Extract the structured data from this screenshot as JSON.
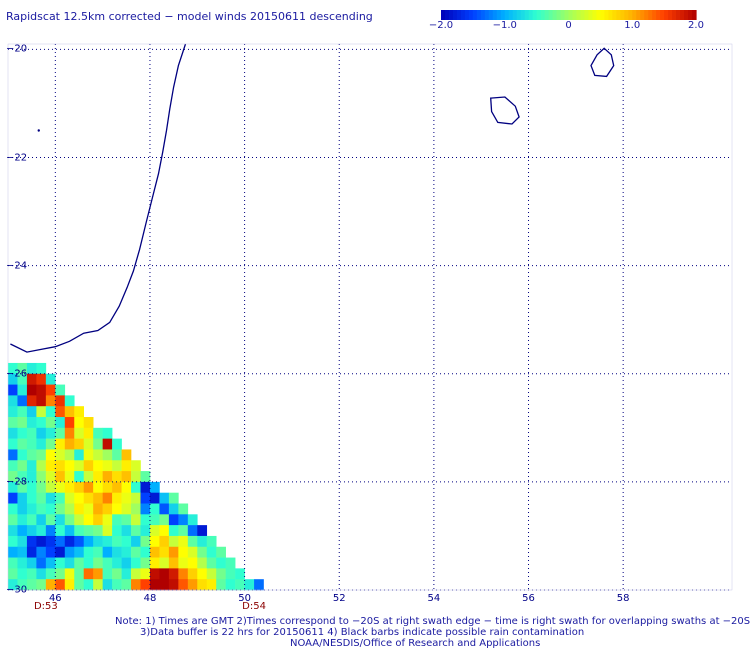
{
  "title": "Rapidscat 12.5km corrected − model winds 20150611 descending",
  "colorbar": {
    "tick_labels": [
      "−2.0",
      "−1.0",
      "0",
      "1.0",
      "2.0"
    ],
    "tick_values": [
      -2.0,
      -1.0,
      0,
      1.0,
      2.0
    ],
    "range": [
      -2.0,
      2.0
    ],
    "colors": [
      "#0000b8",
      "#0040ff",
      "#00b0ff",
      "#30ffd0",
      "#a0ff60",
      "#ffff00",
      "#ffb000",
      "#ff4000",
      "#b00000"
    ]
  },
  "map": {
    "lat_labels": [
      "−20",
      "−22",
      "−24",
      "−26",
      "−28",
      "−30"
    ],
    "lat_values": [
      -20,
      -22,
      -24,
      -26,
      -28,
      -30
    ],
    "lon_labels": [
      "46",
      "48",
      "50",
      "52",
      "54",
      "56",
      "58"
    ],
    "lon_values": [
      46,
      48,
      50,
      52,
      54,
      56,
      58
    ],
    "lon_range": [
      45.0,
      60.3
    ],
    "lat_range": [
      -30.0,
      -19.9
    ],
    "grid": "dotted",
    "coast_color": "#000080",
    "border_color": "#000080"
  },
  "time_labels": [
    "D:53",
    "D:54"
  ],
  "time_label_lons": [
    45.8,
    50.2
  ],
  "notes": {
    "line1": "Note: 1) Times are GMT 2)Times correspond to −20S at right swath edge − time is right swath for overlapping swaths at −20S",
    "line2": "3)Data buffer is 22 hrs for 20150611 4) Black barbs indicate possible rain contamination",
    "line3": "NOAA/NESDIS/Office of Research and Applications"
  },
  "chart_data": {
    "type": "heatmap",
    "title": "Rapidscat 12.5km corrected − model winds 20150611 descending",
    "value_range": [
      -2.0,
      2.0
    ],
    "cell_size_deg": 0.2,
    "rows": [
      {
        "lat": -25.9,
        "lon_start": 45.1,
        "values": [
          -0.5,
          -0.3,
          -0.6,
          -0.5
        ]
      },
      {
        "lat": -26.1,
        "lon_start": 45.1,
        "values": [
          -0.8,
          -0.4,
          1.8,
          1.6,
          -0.6
        ]
      },
      {
        "lat": -26.3,
        "lon_start": 45.1,
        "values": [
          -1.5,
          -0.6,
          2.0,
          1.9,
          1.5,
          -0.4
        ]
      },
      {
        "lat": -26.5,
        "lon_start": 45.1,
        "values": [
          -0.7,
          -1.3,
          1.7,
          1.9,
          1.2,
          1.6,
          -0.5
        ]
      },
      {
        "lat": -26.7,
        "lon_start": 45.1,
        "values": [
          -0.6,
          -0.4,
          -0.8,
          0.2,
          -0.5,
          1.4,
          0.9,
          0.6
        ]
      },
      {
        "lat": -26.9,
        "lon_start": 45.1,
        "values": [
          -0.3,
          -0.2,
          -0.6,
          -0.5,
          -0.2,
          -0.6,
          1.5,
          0.5,
          0.7
        ]
      },
      {
        "lat": -27.1,
        "lon_start": 45.1,
        "values": [
          -0.7,
          -0.5,
          -0.4,
          -0.8,
          -0.6,
          -0.3,
          1.2,
          0.3,
          0.6,
          -0.4,
          -0.5
        ]
      },
      {
        "lat": -27.3,
        "lon_start": 45.1,
        "values": [
          -0.5,
          -0.3,
          -0.4,
          -0.6,
          -0.2,
          0.6,
          1.0,
          0.8,
          0.3,
          -0.2,
          1.9,
          -0.5
        ]
      },
      {
        "lat": -27.5,
        "lon_start": 45.1,
        "values": [
          -1.3,
          -0.5,
          -0.3,
          -0.2,
          0.5,
          0.3,
          0.1,
          -0.6,
          0.4,
          0.2,
          0.0,
          -0.3,
          0.9
        ]
      },
      {
        "lat": -27.7,
        "lon_start": 45.1,
        "values": [
          -0.4,
          -0.2,
          -0.6,
          0.1,
          0.6,
          0.7,
          0.5,
          0.3,
          0.8,
          0.5,
          0.4,
          0.2,
          0.6,
          0.3
        ]
      },
      {
        "lat": -27.9,
        "lon_start": 45.1,
        "values": [
          -0.2,
          -0.4,
          -0.6,
          -0.1,
          0.3,
          0.9,
          0.4,
          -0.5,
          0.2,
          0.6,
          1.0,
          0.7,
          0.9,
          0.2,
          -0.3
        ]
      },
      {
        "lat": -28.1,
        "lon_start": 45.1,
        "values": [
          -0.6,
          -0.3,
          -0.5,
          -0.2,
          0.2,
          0.4,
          0.6,
          0.8,
          1.1,
          0.5,
          0.7,
          0.9,
          0.5,
          -0.5,
          -1.8,
          -1.0
        ]
      },
      {
        "lat": -28.3,
        "lon_start": 45.1,
        "values": [
          -1.5,
          -0.8,
          -0.5,
          -0.3,
          -0.7,
          -0.4,
          0.3,
          0.5,
          0.7,
          0.9,
          1.2,
          0.6,
          0.4,
          0.2,
          -1.5,
          -1.8,
          -0.9,
          -0.3
        ]
      },
      {
        "lat": -28.5,
        "lon_start": 45.1,
        "values": [
          -0.5,
          -0.8,
          -0.6,
          -0.4,
          -0.5,
          -0.2,
          0.1,
          0.6,
          0.4,
          1.0,
          0.8,
          0.5,
          0.3,
          0.0,
          -1.2,
          -0.5,
          -1.4,
          -0.8,
          -0.3
        ]
      },
      {
        "lat": -28.7,
        "lon_start": 45.1,
        "values": [
          -0.3,
          -0.6,
          -0.4,
          -0.8,
          -0.3,
          -0.7,
          -0.2,
          0.2,
          0.5,
          0.8,
          0.4,
          -0.4,
          -0.3,
          0.2,
          -0.5,
          -0.4,
          -0.2,
          -1.5,
          -1.2,
          -0.6
        ]
      },
      {
        "lat": -28.9,
        "lon_start": 45.1,
        "values": [
          -0.7,
          -1.0,
          -0.8,
          -0.6,
          -1.2,
          -0.5,
          -0.9,
          -0.4,
          -0.3,
          -0.2,
          0.3,
          -0.5,
          -0.7,
          -0.3,
          -0.6,
          0.3,
          0.5,
          -0.5,
          -0.3,
          -1.3,
          -1.8
        ]
      },
      {
        "lat": -29.1,
        "lon_start": 45.1,
        "values": [
          -0.5,
          -0.7,
          -1.6,
          -1.8,
          -1.6,
          -1.3,
          -1.7,
          -1.4,
          -1.0,
          -0.7,
          -0.6,
          -0.4,
          -0.5,
          -0.8,
          -0.2,
          0.5,
          0.8,
          0.2,
          0.4,
          -0.3,
          -0.6,
          -0.4
        ]
      },
      {
        "lat": -29.3,
        "lon_start": 45.1,
        "values": [
          -1.0,
          -0.9,
          -1.7,
          -1.2,
          -1.5,
          -1.8,
          -1.1,
          -0.9,
          -0.5,
          -0.4,
          -1.0,
          -0.7,
          -0.6,
          -0.3,
          -0.5,
          0.9,
          0.7,
          1.1,
          0.5,
          0.3,
          -0.2,
          -0.5,
          -0.3
        ]
      },
      {
        "lat": -29.5,
        "lon_start": 45.1,
        "values": [
          -0.4,
          -0.6,
          -0.8,
          -1.3,
          -0.9,
          -0.5,
          -0.7,
          -0.3,
          -0.5,
          -0.2,
          -0.4,
          -0.6,
          -0.8,
          -0.5,
          -0.2,
          0.6,
          0.3,
          0.9,
          0.4,
          0.5,
          0.1,
          -0.3,
          -0.5,
          -0.4
        ]
      },
      {
        "lat": -29.7,
        "lon_start": 45.1,
        "values": [
          -0.3,
          -0.5,
          -0.4,
          -0.7,
          -0.4,
          -0.2,
          0.4,
          -0.3,
          1.3,
          1.1,
          -0.4,
          -0.2,
          -0.6,
          0.2,
          0.4,
          1.9,
          2.0,
          1.8,
          1.2,
          0.8,
          0.5,
          0.2,
          -0.2,
          -0.4,
          -0.5
        ]
      },
      {
        "lat": -29.9,
        "lon_start": 45.1,
        "values": [
          -0.6,
          -0.4,
          -0.3,
          -0.2,
          1.0,
          1.4,
          0.6,
          -0.3,
          -0.5,
          0.2,
          -0.7,
          -0.4,
          -0.3,
          1.2,
          1.5,
          2.0,
          2.0,
          1.9,
          1.4,
          1.1,
          0.7,
          0.6,
          -0.3,
          -0.5,
          -0.4,
          -0.6,
          -1.3
        ]
      }
    ]
  }
}
